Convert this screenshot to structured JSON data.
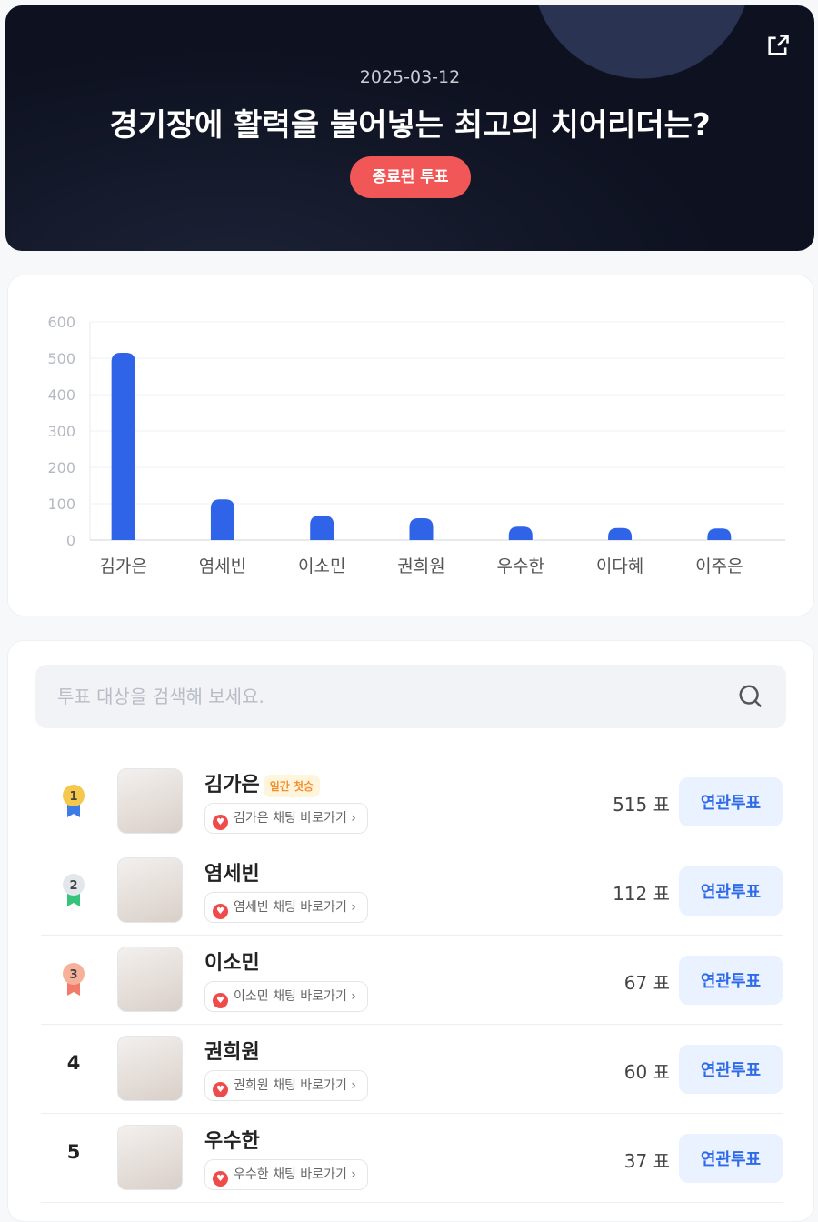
{
  "header": {
    "date": "2025-03-12",
    "title": "경기장에 활력을 불어넣는 최고의 치어리더는?",
    "status": "종료된 투표",
    "share_icon": "external-link-icon"
  },
  "chart_data": {
    "type": "bar",
    "categories": [
      "김가은",
      "염세빈",
      "이소민",
      "권희원",
      "우수한",
      "이다혜",
      "이주은"
    ],
    "values": [
      515,
      112,
      67,
      60,
      37,
      33,
      32
    ],
    "ylim": [
      0,
      600
    ],
    "yticks": [
      0,
      100,
      200,
      300,
      400,
      500,
      600
    ],
    "grid": true,
    "color": "#2f63e8"
  },
  "search": {
    "placeholder": "투표 대상을 검색해 보세요."
  },
  "vote_suffix": "표",
  "entries": [
    {
      "rank": "1",
      "name": "김가은",
      "badge": "일간 첫승",
      "chat": "김가은 채팅 바로가기",
      "votes": "515 표",
      "button": "연관투표",
      "medal": "#f5c84b",
      "ribbon": "#3c7be8"
    },
    {
      "rank": "2",
      "name": "염세빈",
      "chat": "염세빈 채팅 바로가기",
      "votes": "112 표",
      "button": "연관투표",
      "medal": "#e3e6eb",
      "ribbon": "#37c47a"
    },
    {
      "rank": "3",
      "name": "이소민",
      "chat": "이소민 채팅 바로가기",
      "votes": "67 표",
      "button": "연관투표",
      "medal": "#f7b09a",
      "ribbon": "#f27a6a"
    },
    {
      "rank": "4",
      "name": "권희원",
      "chat": "권희원 채팅 바로가기",
      "votes": "60 표",
      "button": "연관투표"
    },
    {
      "rank": "5",
      "name": "우수한",
      "chat": "우수한 채팅 바로가기",
      "votes": "37 표",
      "button": "연관투표"
    }
  ]
}
